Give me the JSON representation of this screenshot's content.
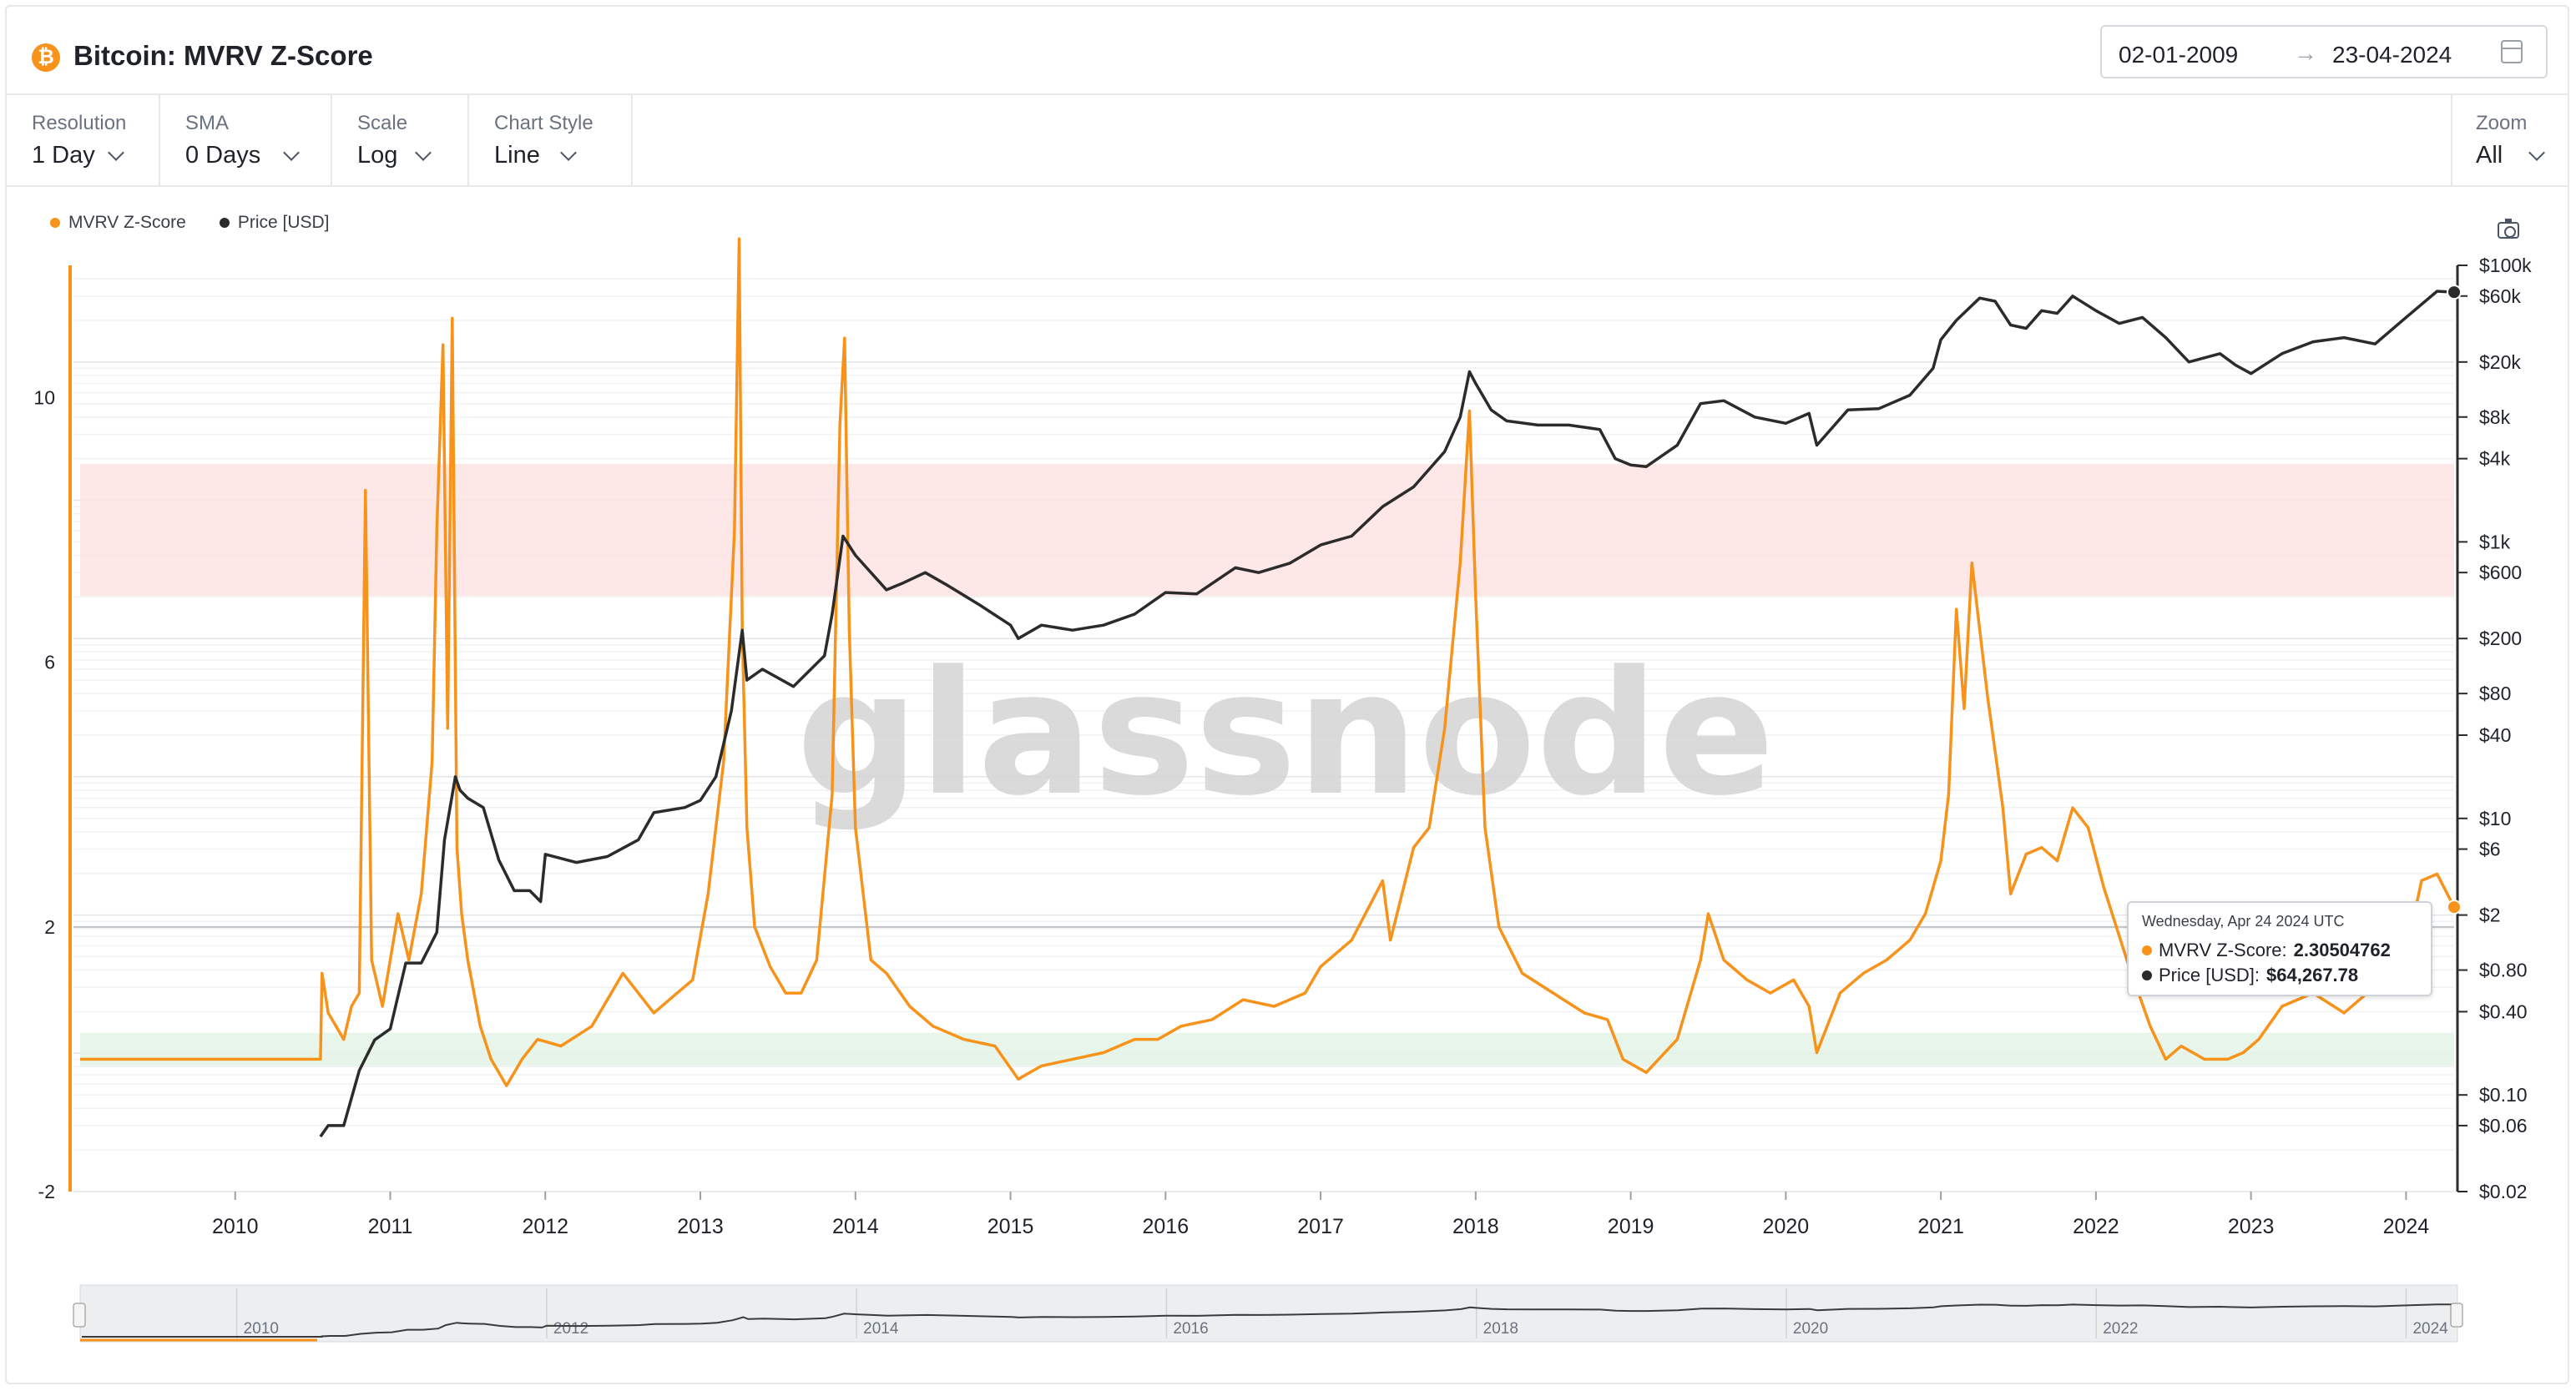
{
  "header": {
    "title": "Bitcoin: MVRV Z-Score",
    "date_from": "02-01-2009",
    "date_arrow": "→",
    "date_to": "23-04-2024"
  },
  "toolbar": {
    "resolution": {
      "label": "Resolution",
      "value": "1 Day"
    },
    "sma": {
      "label": "SMA",
      "value": "0 Days"
    },
    "scale": {
      "label": "Scale",
      "value": "Log"
    },
    "chart_style": {
      "label": "Chart Style",
      "value": "Line"
    },
    "zoom": {
      "label": "Zoom",
      "value": "All"
    }
  },
  "legend": {
    "mvrv": "MVRV Z-Score",
    "price": "Price [USD]"
  },
  "watermark": "glassnode",
  "tooltip": {
    "date": "Wednesday, Apr 24 2024 UTC",
    "mvrv_label": "MVRV Z-Score:",
    "mvrv_value": "2.30504762",
    "price_label": "Price [USD]:",
    "price_value": "$64,267.78"
  },
  "colors": {
    "mvrv": "#f7931a",
    "price": "#2b2b2b",
    "overvalued_band": "#fde3e3",
    "undervalued_band": "#e3f3e6"
  },
  "navigator_labels": [
    "2010",
    "2012",
    "2014",
    "2016",
    "2018",
    "2020",
    "2022",
    "2024"
  ],
  "chart_data": {
    "type": "line",
    "title": "Bitcoin: MVRV Z-Score",
    "x_ticks": [
      "2010",
      "2011",
      "2012",
      "2013",
      "2014",
      "2015",
      "2016",
      "2017",
      "2018",
      "2019",
      "2020",
      "2021",
      "2022",
      "2023",
      "2024"
    ],
    "xlim": [
      2009.0,
      2024.31
    ],
    "left_axis": {
      "ticks": [
        "10",
        "6",
        "2",
        "-2"
      ],
      "ylim": [
        -2,
        12
      ]
    },
    "right_axis": {
      "scale": "log",
      "ticks": [
        "$100k",
        "$60k",
        "$20k",
        "$8k",
        "$4k",
        "$1k",
        "$600",
        "$200",
        "$80",
        "$40",
        "$10",
        "$6",
        "$2",
        "$0.80",
        "$0.40",
        "$0.10",
        "$0.06",
        "$0.02"
      ],
      "ylim": [
        0.02,
        100000
      ]
    },
    "bands": [
      {
        "name": "overvalued",
        "from": 7,
        "to": 9
      },
      {
        "name": "undervalued",
        "from": -0.1,
        "to": 0.4
      }
    ],
    "series": [
      {
        "name": "MVRV Z-Score",
        "axis": "left",
        "x": [
          2009.0,
          2010.55,
          2010.56,
          2010.6,
          2010.7,
          2010.75,
          2010.8,
          2010.84,
          2010.88,
          2010.95,
          2011.05,
          2011.12,
          2011.2,
          2011.27,
          2011.3,
          2011.34,
          2011.37,
          2011.4,
          2011.43,
          2011.46,
          2011.5,
          2011.58,
          2011.65,
          2011.75,
          2011.85,
          2011.95,
          2012.1,
          2012.3,
          2012.5,
          2012.7,
          2012.85,
          2012.95,
          2013.05,
          2013.15,
          2013.22,
          2013.25,
          2013.27,
          2013.3,
          2013.35,
          2013.45,
          2013.55,
          2013.65,
          2013.75,
          2013.85,
          2013.9,
          2013.93,
          2013.96,
          2014.0,
          2014.1,
          2014.2,
          2014.35,
          2014.5,
          2014.7,
          2014.9,
          2015.05,
          2015.2,
          2015.4,
          2015.6,
          2015.8,
          2015.95,
          2016.1,
          2016.3,
          2016.5,
          2016.7,
          2016.9,
          2017.0,
          2017.2,
          2017.4,
          2017.45,
          2017.6,
          2017.7,
          2017.8,
          2017.9,
          2017.96,
          2018.0,
          2018.06,
          2018.15,
          2018.3,
          2018.5,
          2018.7,
          2018.85,
          2018.95,
          2019.1,
          2019.3,
          2019.45,
          2019.5,
          2019.6,
          2019.75,
          2019.9,
          2020.05,
          2020.15,
          2020.2,
          2020.35,
          2020.5,
          2020.65,
          2020.8,
          2020.9,
          2021.0,
          2021.05,
          2021.1,
          2021.15,
          2021.2,
          2021.3,
          2021.4,
          2021.45,
          2021.55,
          2021.65,
          2021.75,
          2021.85,
          2021.95,
          2022.05,
          2022.2,
          2022.35,
          2022.45,
          2022.55,
          2022.7,
          2022.85,
          2022.95,
          2023.05,
          2023.2,
          2023.4,
          2023.6,
          2023.75,
          2023.9,
          2024.0,
          2024.1,
          2024.2,
          2024.31
        ],
        "y": [
          0.0,
          0.0,
          1.3,
          0.7,
          0.3,
          0.8,
          1.0,
          8.6,
          1.5,
          0.8,
          2.2,
          1.5,
          2.5,
          4.5,
          8.0,
          10.8,
          5.0,
          11.2,
          3.2,
          2.2,
          1.5,
          0.5,
          0.0,
          -0.4,
          0.0,
          0.3,
          0.2,
          0.5,
          1.3,
          0.7,
          1.0,
          1.2,
          2.5,
          4.5,
          8.0,
          12.4,
          6.5,
          3.5,
          2.0,
          1.4,
          1.0,
          1.0,
          1.5,
          4.0,
          9.6,
          10.9,
          6.5,
          3.5,
          1.5,
          1.3,
          0.8,
          0.5,
          0.3,
          0.2,
          -0.3,
          -0.1,
          0.0,
          0.1,
          0.3,
          0.3,
          0.5,
          0.6,
          0.9,
          0.8,
          1.0,
          1.4,
          1.8,
          2.7,
          1.8,
          3.2,
          3.5,
          5.0,
          7.5,
          9.8,
          7.0,
          3.5,
          2.0,
          1.3,
          1.0,
          0.7,
          0.6,
          0.0,
          -0.2,
          0.3,
          1.5,
          2.2,
          1.5,
          1.2,
          1.0,
          1.2,
          0.8,
          0.1,
          1.0,
          1.3,
          1.5,
          1.8,
          2.2,
          3.0,
          4.0,
          6.8,
          5.3,
          7.5,
          5.5,
          3.8,
          2.5,
          3.1,
          3.2,
          3.0,
          3.8,
          3.5,
          2.6,
          1.5,
          0.5,
          0.0,
          0.2,
          0.0,
          0.0,
          0.1,
          0.3,
          0.8,
          1.0,
          0.7,
          1.0,
          1.4,
          1.6,
          2.7,
          2.8,
          2.3
        ]
      },
      {
        "name": "Price [USD]",
        "axis": "right",
        "x": [
          2010.55,
          2010.6,
          2010.7,
          2010.8,
          2010.9,
          2011.0,
          2011.1,
          2011.2,
          2011.3,
          2011.35,
          2011.42,
          2011.45,
          2011.5,
          2011.6,
          2011.7,
          2011.8,
          2011.9,
          2011.97,
          2012.0,
          2012.2,
          2012.4,
          2012.6,
          2012.7,
          2012.9,
          2013.0,
          2013.1,
          2013.2,
          2013.27,
          2013.3,
          2013.4,
          2013.6,
          2013.8,
          2013.85,
          2013.92,
          2014.0,
          2014.1,
          2014.2,
          2014.3,
          2014.45,
          2014.6,
          2014.8,
          2015.0,
          2015.05,
          2015.2,
          2015.4,
          2015.6,
          2015.8,
          2016.0,
          2016.2,
          2016.45,
          2016.6,
          2016.8,
          2017.0,
          2017.2,
          2017.4,
          2017.6,
          2017.8,
          2017.9,
          2017.96,
          2018.0,
          2018.1,
          2018.2,
          2018.4,
          2018.6,
          2018.8,
          2018.9,
          2019.0,
          2019.1,
          2019.3,
          2019.45,
          2019.6,
          2019.8,
          2020.0,
          2020.15,
          2020.2,
          2020.4,
          2020.6,
          2020.8,
          2020.95,
          2021.0,
          2021.1,
          2021.25,
          2021.35,
          2021.45,
          2021.55,
          2021.65,
          2021.75,
          2021.85,
          2022.0,
          2022.15,
          2022.3,
          2022.45,
          2022.6,
          2022.8,
          2022.9,
          2023.0,
          2023.2,
          2023.4,
          2023.6,
          2023.8,
          2024.0,
          2024.2,
          2024.31
        ],
        "y": [
          0.05,
          0.06,
          0.06,
          0.15,
          0.25,
          0.3,
          0.9,
          0.9,
          1.5,
          7.0,
          20.0,
          16.0,
          14.0,
          12.0,
          5.0,
          3.0,
          3.0,
          2.5,
          5.5,
          4.8,
          5.3,
          7.0,
          11.0,
          12.0,
          13.5,
          20.0,
          60.0,
          230.0,
          100.0,
          120.0,
          90.0,
          150.0,
          300.0,
          1100.0,
          800.0,
          600.0,
          450.0,
          500.0,
          600.0,
          480.0,
          350.0,
          250.0,
          200.0,
          250.0,
          230.0,
          250.0,
          300.0,
          430.0,
          420.0,
          650.0,
          600.0,
          700.0,
          950.0,
          1100.0,
          1800.0,
          2500.0,
          4500.0,
          8000.0,
          17000.0,
          14000.0,
          9000.0,
          7500.0,
          7000.0,
          7000.0,
          6500.0,
          4000.0,
          3600.0,
          3500.0,
          5000.0,
          10000.0,
          10500.0,
          8000.0,
          7200.0,
          8500.0,
          5000.0,
          9000.0,
          9200.0,
          11500.0,
          18000.0,
          29000.0,
          40000.0,
          58000.0,
          55000.0,
          37000.0,
          35000.0,
          47000.0,
          45000.0,
          60000.0,
          47000.0,
          38000.0,
          42000.0,
          30000.0,
          20000.0,
          23000.0,
          19000.0,
          16500.0,
          23000.0,
          28000.0,
          30000.0,
          27000.0,
          42000.0,
          65000.0,
          64000.0
        ]
      }
    ]
  }
}
